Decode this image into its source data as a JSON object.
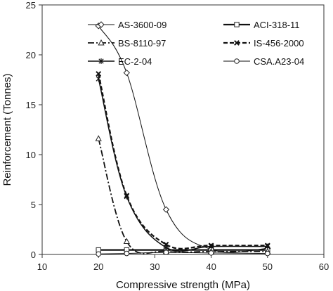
{
  "chart_data": {
    "type": "line",
    "title": "",
    "xlabel": "Compressive strength (MPa)",
    "ylabel": "Reinforcement (Tonnes)",
    "xlim": [
      10,
      60
    ],
    "ylim": [
      0,
      25
    ],
    "xticks": [
      10,
      20,
      30,
      40,
      50,
      60
    ],
    "yticks": [
      0,
      5,
      10,
      15,
      20,
      25
    ],
    "grid": false,
    "legend_position": "top-right",
    "x": [
      20,
      25,
      32,
      40,
      50
    ],
    "series": [
      {
        "name": "AS-3600-09",
        "marker": "diamond",
        "dash": "solid-thin",
        "values": [
          22.9,
          18.2,
          4.5,
          0.5,
          0.6
        ]
      },
      {
        "name": "ACI-318-11",
        "marker": "square",
        "dash": "solid-thick",
        "values": [
          0.45,
          0.45,
          0.45,
          0.45,
          0.45
        ]
      },
      {
        "name": "BS-8110-97",
        "marker": "triangle",
        "dash": "dash-dot",
        "values": [
          11.6,
          1.3,
          0.3,
          0.3,
          0.3
        ]
      },
      {
        "name": "IS-456-2000",
        "marker": "x",
        "dash": "dashed",
        "values": [
          18.1,
          5.9,
          1.0,
          0.9,
          0.9
        ]
      },
      {
        "name": "EC-2-04",
        "marker": "star",
        "dash": "solid",
        "values": [
          17.6,
          5.8,
          0.7,
          0.8,
          0.8
        ]
      },
      {
        "name": "CSA.A23-04",
        "marker": "circle",
        "dash": "solid-thin",
        "values": [
          0.05,
          0.1,
          0.2,
          0.15,
          0.1
        ]
      }
    ]
  }
}
